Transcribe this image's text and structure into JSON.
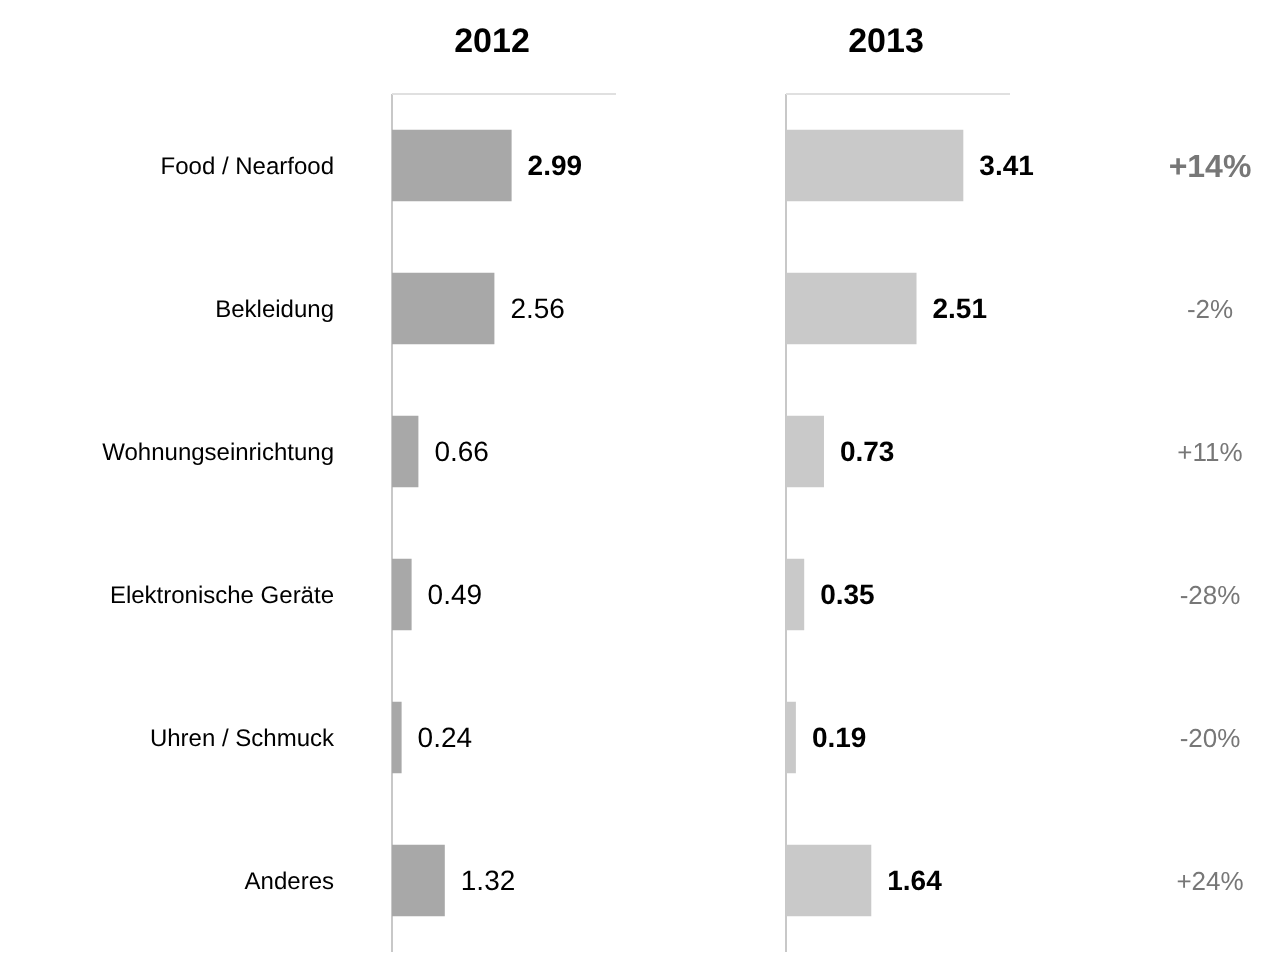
{
  "chart_data": [
    {
      "type": "bar",
      "title": "2012",
      "orientation": "horizontal",
      "categories": [
        "Food / Nearfood",
        "Bekleidung",
        "Wohnungseinrichtung",
        "Elektronische Geräte",
        "Uhren / Schmuck",
        "Anderes"
      ],
      "values": [
        2.99,
        2.56,
        0.66,
        0.49,
        0.24,
        1.32
      ],
      "color": "#a8a8a8",
      "data_labels": true
    },
    {
      "type": "bar",
      "title": "2013",
      "orientation": "horizontal",
      "categories": [
        null,
        null,
        null,
        null,
        null,
        null
      ],
      "values": [
        3.41,
        2.51,
        0.73,
        0.35,
        0.19,
        1.64
      ],
      "color": "#c9c9c9",
      "data_labels": true,
      "annotations": [
        "+14%",
        "-2%",
        "+11%",
        "-28%",
        "-20%",
        "+24%"
      ]
    }
  ]
}
